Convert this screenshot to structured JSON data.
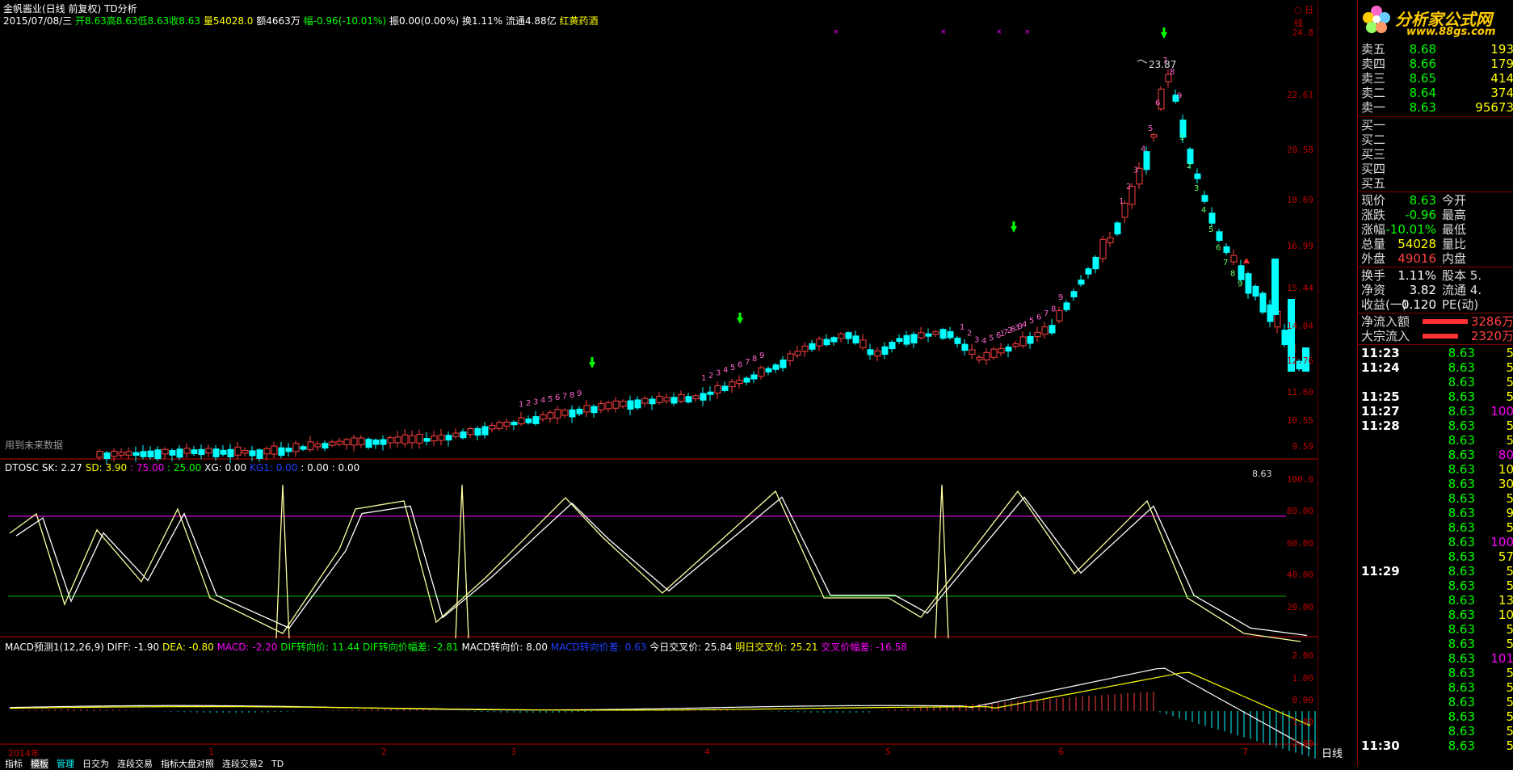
{
  "header": {
    "title": "金帆酱业(日线 前复权) TD分析",
    "date": "2015/07/08/三",
    "open": "开8.63",
    "high": "高8.63",
    "low": "低8.63",
    "close": "收8.63",
    "volume": "量54028.0",
    "amount": "额4663万",
    "change": "幅-0.96(-10.01%)",
    "amplitude": "振0.00(0.00%)",
    "turnover": "换1.11%",
    "float": "流通4.88亿",
    "concept": "红黄药酒"
  },
  "top_right_label": "日线",
  "logo": {
    "name": "分析家公式网",
    "url": "www.88gs.com"
  },
  "price_axis": [
    "24.8",
    "22.61",
    "20.58",
    "18.69",
    "16.99",
    "15.44",
    "14.04",
    "12.76",
    "11.60",
    "10.55",
    "9.59"
  ],
  "annotations": {
    "peak": "23.87",
    "future": "用到未来数据"
  },
  "td_labels": {
    "count_a": [
      "1",
      "2",
      "3",
      "4",
      "5",
      "6",
      "7",
      "8",
      "9"
    ],
    "count_b": [
      "1",
      "2",
      "3",
      "4",
      "5",
      "6",
      "7",
      "8",
      "9"
    ]
  },
  "dtosc": {
    "label": "DTOSC",
    "sk": "SK: 2.27",
    "sd": "SD: 3.90",
    "p75": ": 75.00",
    "p25": ": 25.00",
    "xg": "XG: 0.00",
    "extra1": "KG1: 0.00",
    "extra2": ": 0.00",
    "extra3": ": 0.00",
    "corner": "8.63",
    "axis": [
      "100.0",
      "80.00",
      "60.00",
      "40.00",
      "20.00"
    ]
  },
  "macd": {
    "label": "MACD预测1(12,26,9)",
    "diff": "DIFF: -1.90",
    "dea": "DEA: -0.80",
    "macd": "MACD: -2.20",
    "dif_turn": "DIF转向价: 11.44",
    "dif_gap": "DIF转向价幅差: -2.81",
    "macd_turn": "MACD转向价: 8.00",
    "macd_gap": "MACD转向价差: 0.63",
    "today_cross": "今日交叉价: 25.84",
    "tomorrow_cross": "明日交叉价: 25.21",
    "cross_gap": "交叉价幅差: -16.58",
    "axis": [
      "2.00",
      "1.00",
      "0.00",
      "-1.00",
      "-2.00"
    ]
  },
  "time_axis": [
    "2014年",
    "1",
    "2",
    "3",
    "4",
    "5",
    "6",
    "7"
  ],
  "period_label": "日线",
  "bottom_tabs": [
    "指标",
    "模板",
    "管理",
    "日交为",
    "连段交易",
    "指标大盘对照",
    "连段交易2",
    "TD"
  ],
  "order_book": {
    "sell": [
      {
        "label": "卖五",
        "price": "8.68",
        "vol": "193"
      },
      {
        "label": "卖四",
        "price": "8.66",
        "vol": "179"
      },
      {
        "label": "卖三",
        "price": "8.65",
        "vol": "414"
      },
      {
        "label": "卖二",
        "price": "8.64",
        "vol": "374"
      },
      {
        "label": "卖一",
        "price": "8.63",
        "vol": "95673"
      }
    ],
    "buy": [
      {
        "label": "买一"
      },
      {
        "label": "买二"
      },
      {
        "label": "买三"
      },
      {
        "label": "买四"
      },
      {
        "label": "买五"
      }
    ]
  },
  "quote": [
    {
      "l1": "现价",
      "v1": "8.63",
      "l2": "今开"
    },
    {
      "l1": "涨跌",
      "v1": "-0.96",
      "l2": "最高"
    },
    {
      "l1": "涨幅",
      "v1": "-10.01%",
      "l2": "最低"
    },
    {
      "l1": "总量",
      "v1": "54028",
      "l2": "量比"
    },
    {
      "l1": "外盘",
      "v1": "49016",
      "l2": "内盘"
    }
  ],
  "stats": [
    {
      "l1": "换手",
      "v1": "1.11%",
      "l2": "股本",
      "v2": "5."
    },
    {
      "l1": "净资",
      "v1": "3.82",
      "l2": "流通",
      "v2": "4."
    },
    {
      "l1": "收益(一)",
      "v1": "0.120",
      "l2": "PE(动)",
      "v2": ""
    }
  ],
  "flows": [
    {
      "label": "净流入额",
      "value": "3286万"
    },
    {
      "label": "大宗流入",
      "value": "2320万"
    }
  ],
  "ticks": [
    {
      "time": "11:23",
      "price": "8.63",
      "vol": "5"
    },
    {
      "time": "11:24",
      "price": "8.63",
      "vol": "5"
    },
    {
      "time": "",
      "price": "8.63",
      "vol": "5"
    },
    {
      "time": "11:25",
      "price": "8.63",
      "vol": "5"
    },
    {
      "time": "11:27",
      "price": "8.63",
      "vol": "100"
    },
    {
      "time": "11:28",
      "price": "8.63",
      "vol": "5"
    },
    {
      "time": "",
      "price": "8.63",
      "vol": "5"
    },
    {
      "time": "",
      "price": "8.63",
      "vol": "80"
    },
    {
      "time": "",
      "price": "8.63",
      "vol": "10"
    },
    {
      "time": "",
      "price": "8.63",
      "vol": "30"
    },
    {
      "time": "",
      "price": "8.63",
      "vol": "5"
    },
    {
      "time": "",
      "price": "8.63",
      "vol": "9"
    },
    {
      "time": "",
      "price": "8.63",
      "vol": "5"
    },
    {
      "time": "",
      "price": "8.63",
      "vol": "100"
    },
    {
      "time": "",
      "price": "8.63",
      "vol": "57"
    },
    {
      "time": "11:29",
      "price": "8.63",
      "vol": "5"
    },
    {
      "time": "",
      "price": "8.63",
      "vol": "5"
    },
    {
      "time": "",
      "price": "8.63",
      "vol": "13"
    },
    {
      "time": "",
      "price": "8.63",
      "vol": "10"
    },
    {
      "time": "",
      "price": "8.63",
      "vol": "5"
    },
    {
      "time": "",
      "price": "8.63",
      "vol": "5"
    },
    {
      "time": "",
      "price": "8.63",
      "vol": "101"
    },
    {
      "time": "",
      "price": "8.63",
      "vol": "5"
    },
    {
      "time": "",
      "price": "8.63",
      "vol": "5"
    },
    {
      "time": "",
      "price": "8.63",
      "vol": "5"
    },
    {
      "time": "",
      "price": "8.63",
      "vol": "5"
    },
    {
      "time": "",
      "price": "8.63",
      "vol": "5"
    },
    {
      "time": "11:30",
      "price": "8.63",
      "vol": "5"
    }
  ],
  "colors": {
    "up": "#ff4040",
    "down": "#00ffff",
    "axis": "#c00000",
    "green": "#00ff00",
    "yellow": "#ffff00",
    "magenta": "#ff00ff"
  }
}
